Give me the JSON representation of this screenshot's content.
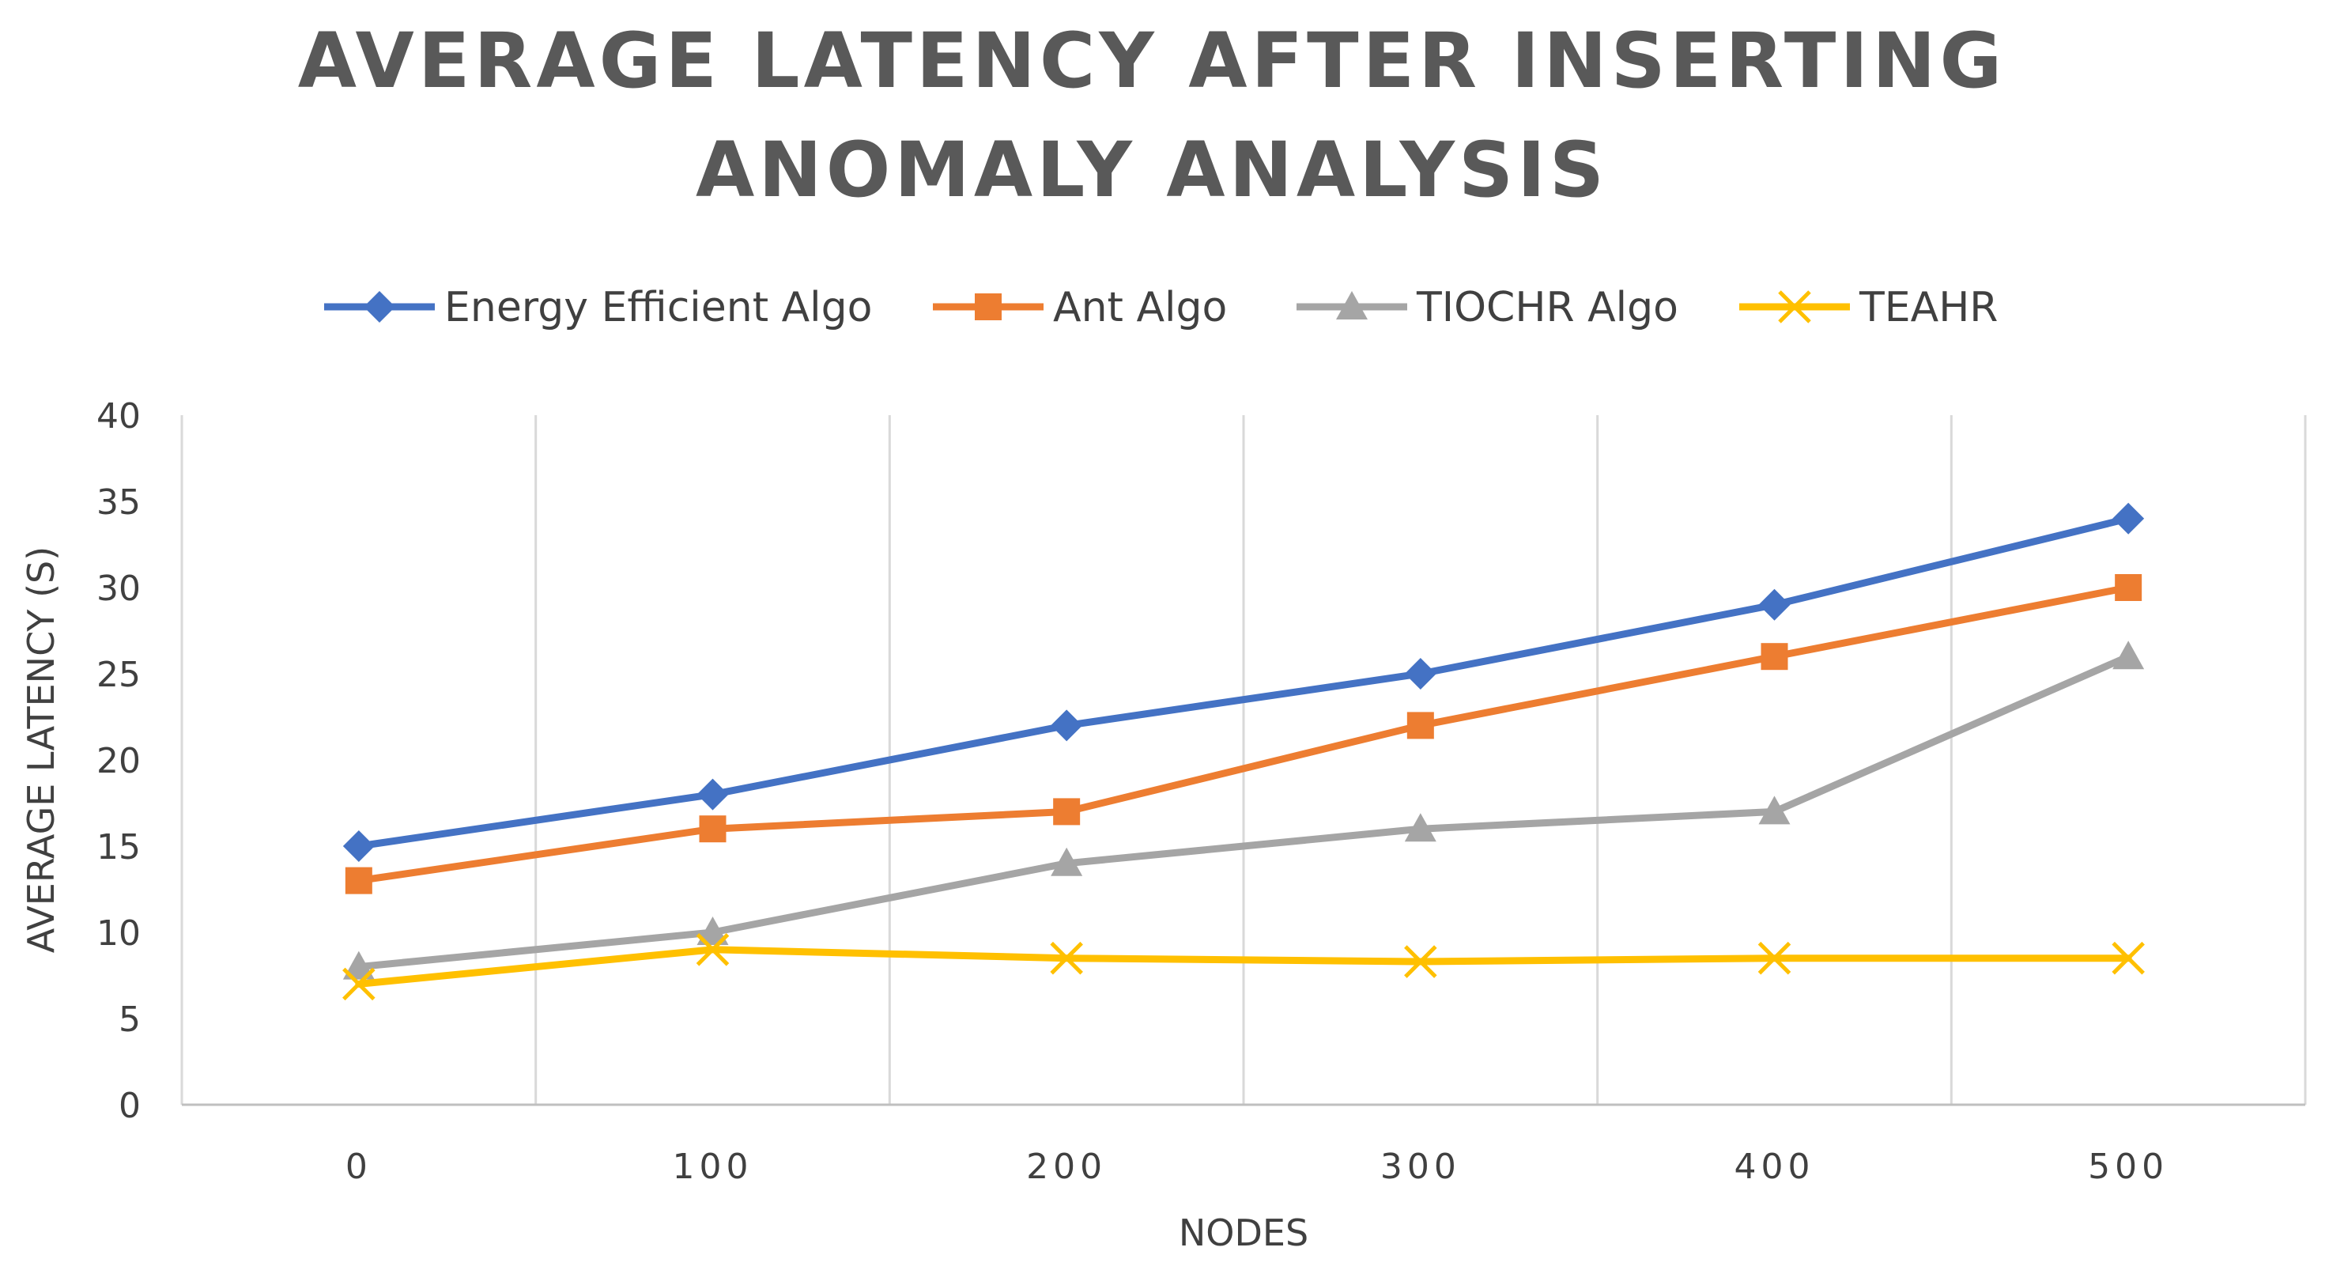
{
  "chart_data": {
    "type": "line",
    "title_lines": [
      "AVERAGE LATENCY AFTER INSERTING",
      "ANOMALY ANALYSIS"
    ],
    "xlabel": "NODES",
    "ylabel": "AVERAGE LATENCY (S)",
    "categories": [
      "0",
      "100",
      "200",
      "300",
      "400",
      "500"
    ],
    "x_range": [
      -50,
      550
    ],
    "ylim": [
      0,
      40
    ],
    "yticks": [
      0,
      5,
      10,
      15,
      20,
      25,
      30,
      35,
      40
    ],
    "vertical_gridlines": [
      50,
      150,
      250,
      350,
      450
    ],
    "legend_position": "top-center",
    "series": [
      {
        "name": "Energy Efficient Algo",
        "color": "#4472C4",
        "marker": "diamond",
        "values": [
          15,
          18,
          22,
          25,
          29,
          34
        ]
      },
      {
        "name": "Ant Algo",
        "color": "#ED7D31",
        "marker": "square",
        "values": [
          13,
          16,
          17,
          22,
          26,
          30
        ]
      },
      {
        "name": "TIOCHR Algo",
        "color": "#A5A5A5",
        "marker": "triangle",
        "values": [
          8,
          10,
          14,
          16,
          17,
          26
        ]
      },
      {
        "name": "TEAHR",
        "color": "#FFC000",
        "marker": "x",
        "values": [
          7,
          9,
          8.5,
          8.3,
          8.5,
          8.5
        ]
      }
    ]
  }
}
